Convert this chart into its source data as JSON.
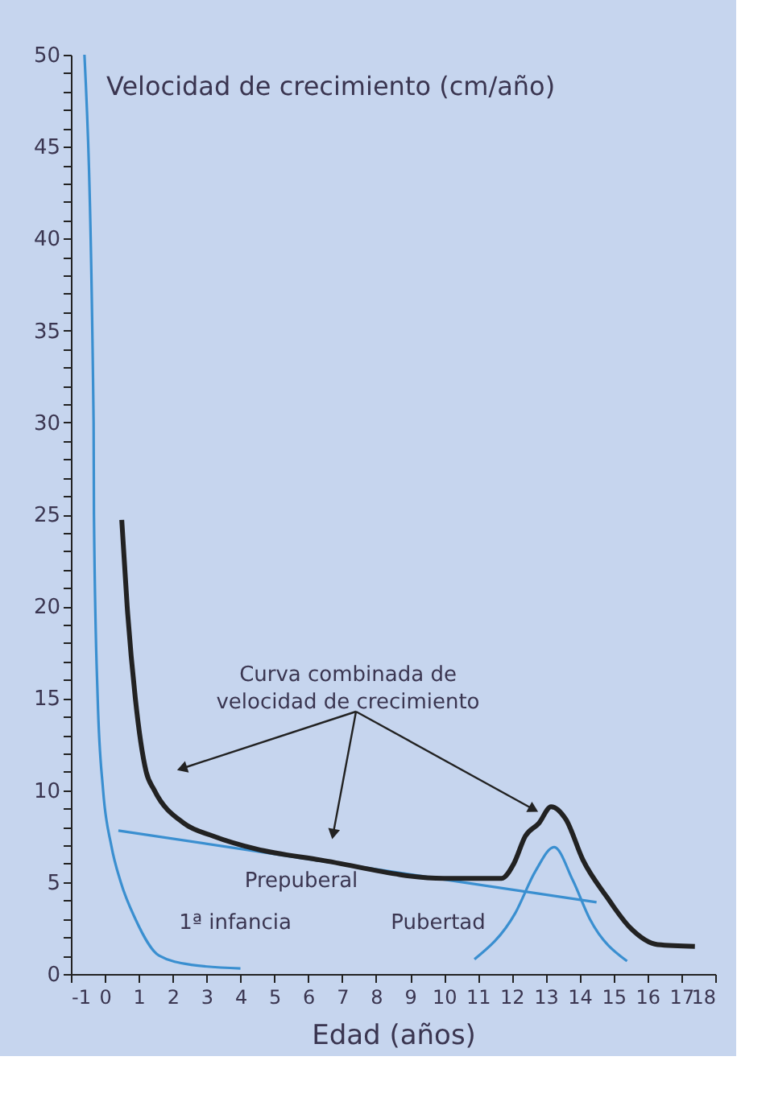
{
  "chart_data": {
    "type": "line",
    "ylabel": "Velocidad de crecimiento (cm/año)",
    "xlabel": "Edad (años)",
    "xlim": [
      -1,
      18
    ],
    "xticks": [
      -1,
      0,
      1,
      2,
      3,
      4,
      5,
      6,
      7,
      8,
      9,
      10,
      11,
      12,
      13,
      14,
      15,
      16,
      17,
      18
    ],
    "ylim": [
      0,
      50
    ],
    "yticks": [
      0,
      {
        "value": 1,
        "label": null
      },
      {
        "value": 2,
        "label": null
      },
      {
        "value": 3,
        "label": null
      },
      {
        "value": 4,
        "label": null
      },
      5,
      {
        "value": 6,
        "label": null
      },
      {
        "value": 7,
        "label": null
      },
      {
        "value": 8,
        "label": null
      },
      {
        "value": 9,
        "label": null
      },
      10,
      {
        "value": 11,
        "label": null
      },
      {
        "value": 12,
        "label": null
      },
      {
        "value": 13,
        "label": null
      },
      {
        "value": 14,
        "label": null
      },
      15,
      {
        "value": 16,
        "label": null
      },
      {
        "value": 17,
        "label": null
      },
      {
        "value": 18,
        "label": null
      },
      {
        "value": 19,
        "label": null
      },
      20,
      {
        "value": 21,
        "label": null
      },
      {
        "value": 22,
        "label": null
      },
      {
        "value": 23,
        "label": null
      },
      {
        "value": 24,
        "label": null
      },
      25,
      {
        "value": 26,
        "label": null
      },
      {
        "value": 27,
        "label": null
      },
      {
        "value": 28,
        "label": null
      },
      {
        "value": 29,
        "label": null
      },
      30,
      {
        "value": 31,
        "label": null
      },
      {
        "value": 32,
        "label": null
      },
      {
        "value": 33,
        "label": null
      },
      {
        "value": 34,
        "label": null
      },
      35,
      {
        "value": 36,
        "label": null
      },
      {
        "value": 37,
        "label": null
      },
      {
        "value": 38,
        "label": null
      },
      {
        "value": 39,
        "label": null
      },
      40,
      {
        "value": 41,
        "label": null
      },
      {
        "value": 42,
        "label": null
      },
      {
        "value": 43,
        "label": null
      },
      {
        "value": 44,
        "label": null
      },
      45,
      {
        "value": 46,
        "label": null
      },
      {
        "value": 47,
        "label": null
      },
      {
        "value": 48,
        "label": null
      },
      {
        "value": 49,
        "label": null
      },
      50
    ],
    "grid": false,
    "marker": "none",
    "line_style": "solid",
    "series": [
      {
        "color": "#3a8fd0",
        "x": [
          -0.6,
          -0.33,
          -0.32,
          -0.21,
          -0.05,
          0.19,
          0.47,
          0.9,
          1.6,
          2.55,
          4.0
        ],
        "values": [
          50,
          30,
          25,
          15,
          10,
          7,
          5,
          3,
          1,
          0.5,
          0.3
        ]
      },
      {
        "color": "#3a8fd0",
        "x": [
          0.4,
          14.5
        ],
        "values": [
          7.8,
          3.9
        ]
      },
      {
        "color": "#3a8fd0",
        "x": [
          10.9,
          12.1,
          12.7,
          13.25,
          13.8,
          14.3,
          15.4
        ],
        "values": [
          0.8,
          3.3,
          5.6,
          6.9,
          5.1,
          3.0,
          0.7
        ]
      },
      {
        "color": "#222222",
        "x": [
          0.5,
          0.66,
          0.9,
          1.22,
          1.46,
          2.33,
          3.2,
          4.46,
          6.36,
          10.0,
          11.7,
          12.06,
          12.4,
          12.8,
          13.16,
          13.6,
          14.1,
          14.8,
          15.5,
          16.3,
          17.4
        ],
        "values": [
          24.7,
          20,
          15,
          11,
          10,
          8.2,
          7.5,
          6.8,
          6.2,
          5.2,
          5.2,
          6.0,
          7.5,
          8.2,
          9.1,
          8.4,
          6.2,
          4.2,
          2.5,
          1.6,
          1.5
        ]
      }
    ],
    "annotations": [
      {
        "text": "Curva combinada de\nvelocidad de crecimiento",
        "x": 12.6,
        "y": 9
      },
      "Prepuberal",
      "1ª infancia",
      "Pubertad"
    ]
  }
}
